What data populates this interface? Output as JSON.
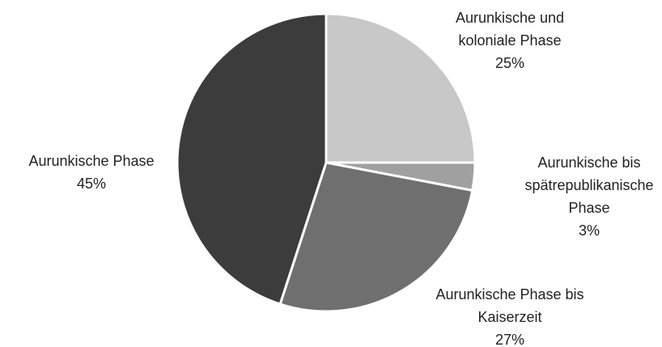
{
  "chart_data": {
    "type": "pie",
    "categories": [
      "Aurunkische und koloniale Phase",
      "Aurunkische bis spätrepublikanische Phase",
      "Aurunkische Phase bis Kaiserzeit",
      "Aurunkische Phase"
    ],
    "values": [
      25,
      3,
      27,
      45
    ],
    "value_labels": [
      "25%",
      "3%",
      "27%",
      "45%"
    ],
    "colors": [
      "#c8c8c8",
      "#a0a0a0",
      "#6f6f6f",
      "#3c3c3c"
    ]
  }
}
